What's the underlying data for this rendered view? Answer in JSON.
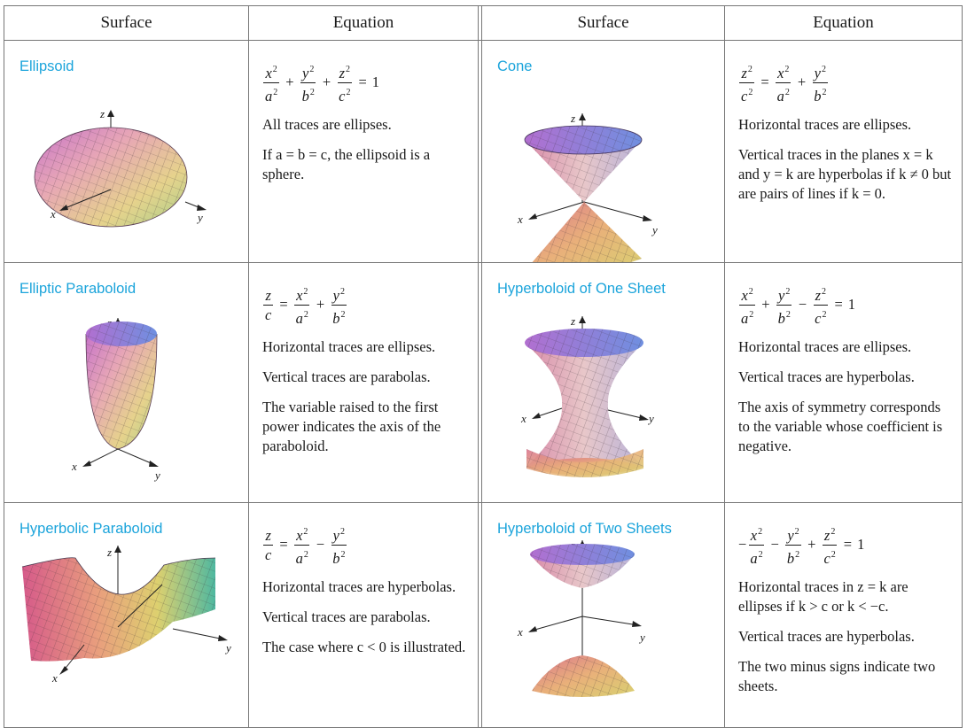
{
  "header": {
    "surface_label": "Surface",
    "equation_label": "Equation"
  },
  "axis_labels": {
    "x": "x",
    "y": "y",
    "z": "z"
  },
  "surfaces": [
    {
      "name": "Ellipsoid",
      "equation": "x²/a² + y²/b² + z²/c² = 1",
      "notes": [
        "All traces are ellipses.",
        "If a = b = c, the ellipsoid is a sphere."
      ]
    },
    {
      "name": "Cone",
      "equation": "z²/c² = x²/a² + y²/b²",
      "notes": [
        "Horizontal traces are ellipses.",
        "Vertical traces in the planes x = k and y = k are hyperbolas if k ≠ 0 but are pairs of lines if k = 0."
      ]
    },
    {
      "name": "Elliptic Paraboloid",
      "equation": "z/c = x²/a² + y²/b²",
      "notes": [
        "Horizontal traces are ellipses.",
        "Vertical traces are parabolas.",
        "The variable raised to the first power indicates the axis of the paraboloid."
      ]
    },
    {
      "name": "Hyperboloid of One Sheet",
      "equation": "x²/a² + y²/b² − z²/c² = 1",
      "notes": [
        "Horizontal traces are ellipses.",
        "Vertical traces are hyperbolas.",
        "The axis of symmetry corresponds to the variable whose coefficient is negative."
      ]
    },
    {
      "name": "Hyperbolic Paraboloid",
      "equation": "z/c = x²/a² − y²/b²",
      "notes": [
        "Horizontal traces are hyperbolas.",
        "Vertical traces are parabolas.",
        "The case where c < 0 is illustrated."
      ]
    },
    {
      "name": "Hyperboloid of Two Sheets",
      "equation": "−x²/a² − y²/b² + z²/c² = 1",
      "notes": [
        "Horizontal traces in z = k are ellipses if k > c or k < −c.",
        "Vertical traces are hyperbolas.",
        "The two minus signs indicate two sheets."
      ]
    }
  ],
  "colors": {
    "name_accent": "#1ba4db",
    "rule": "#777777"
  }
}
